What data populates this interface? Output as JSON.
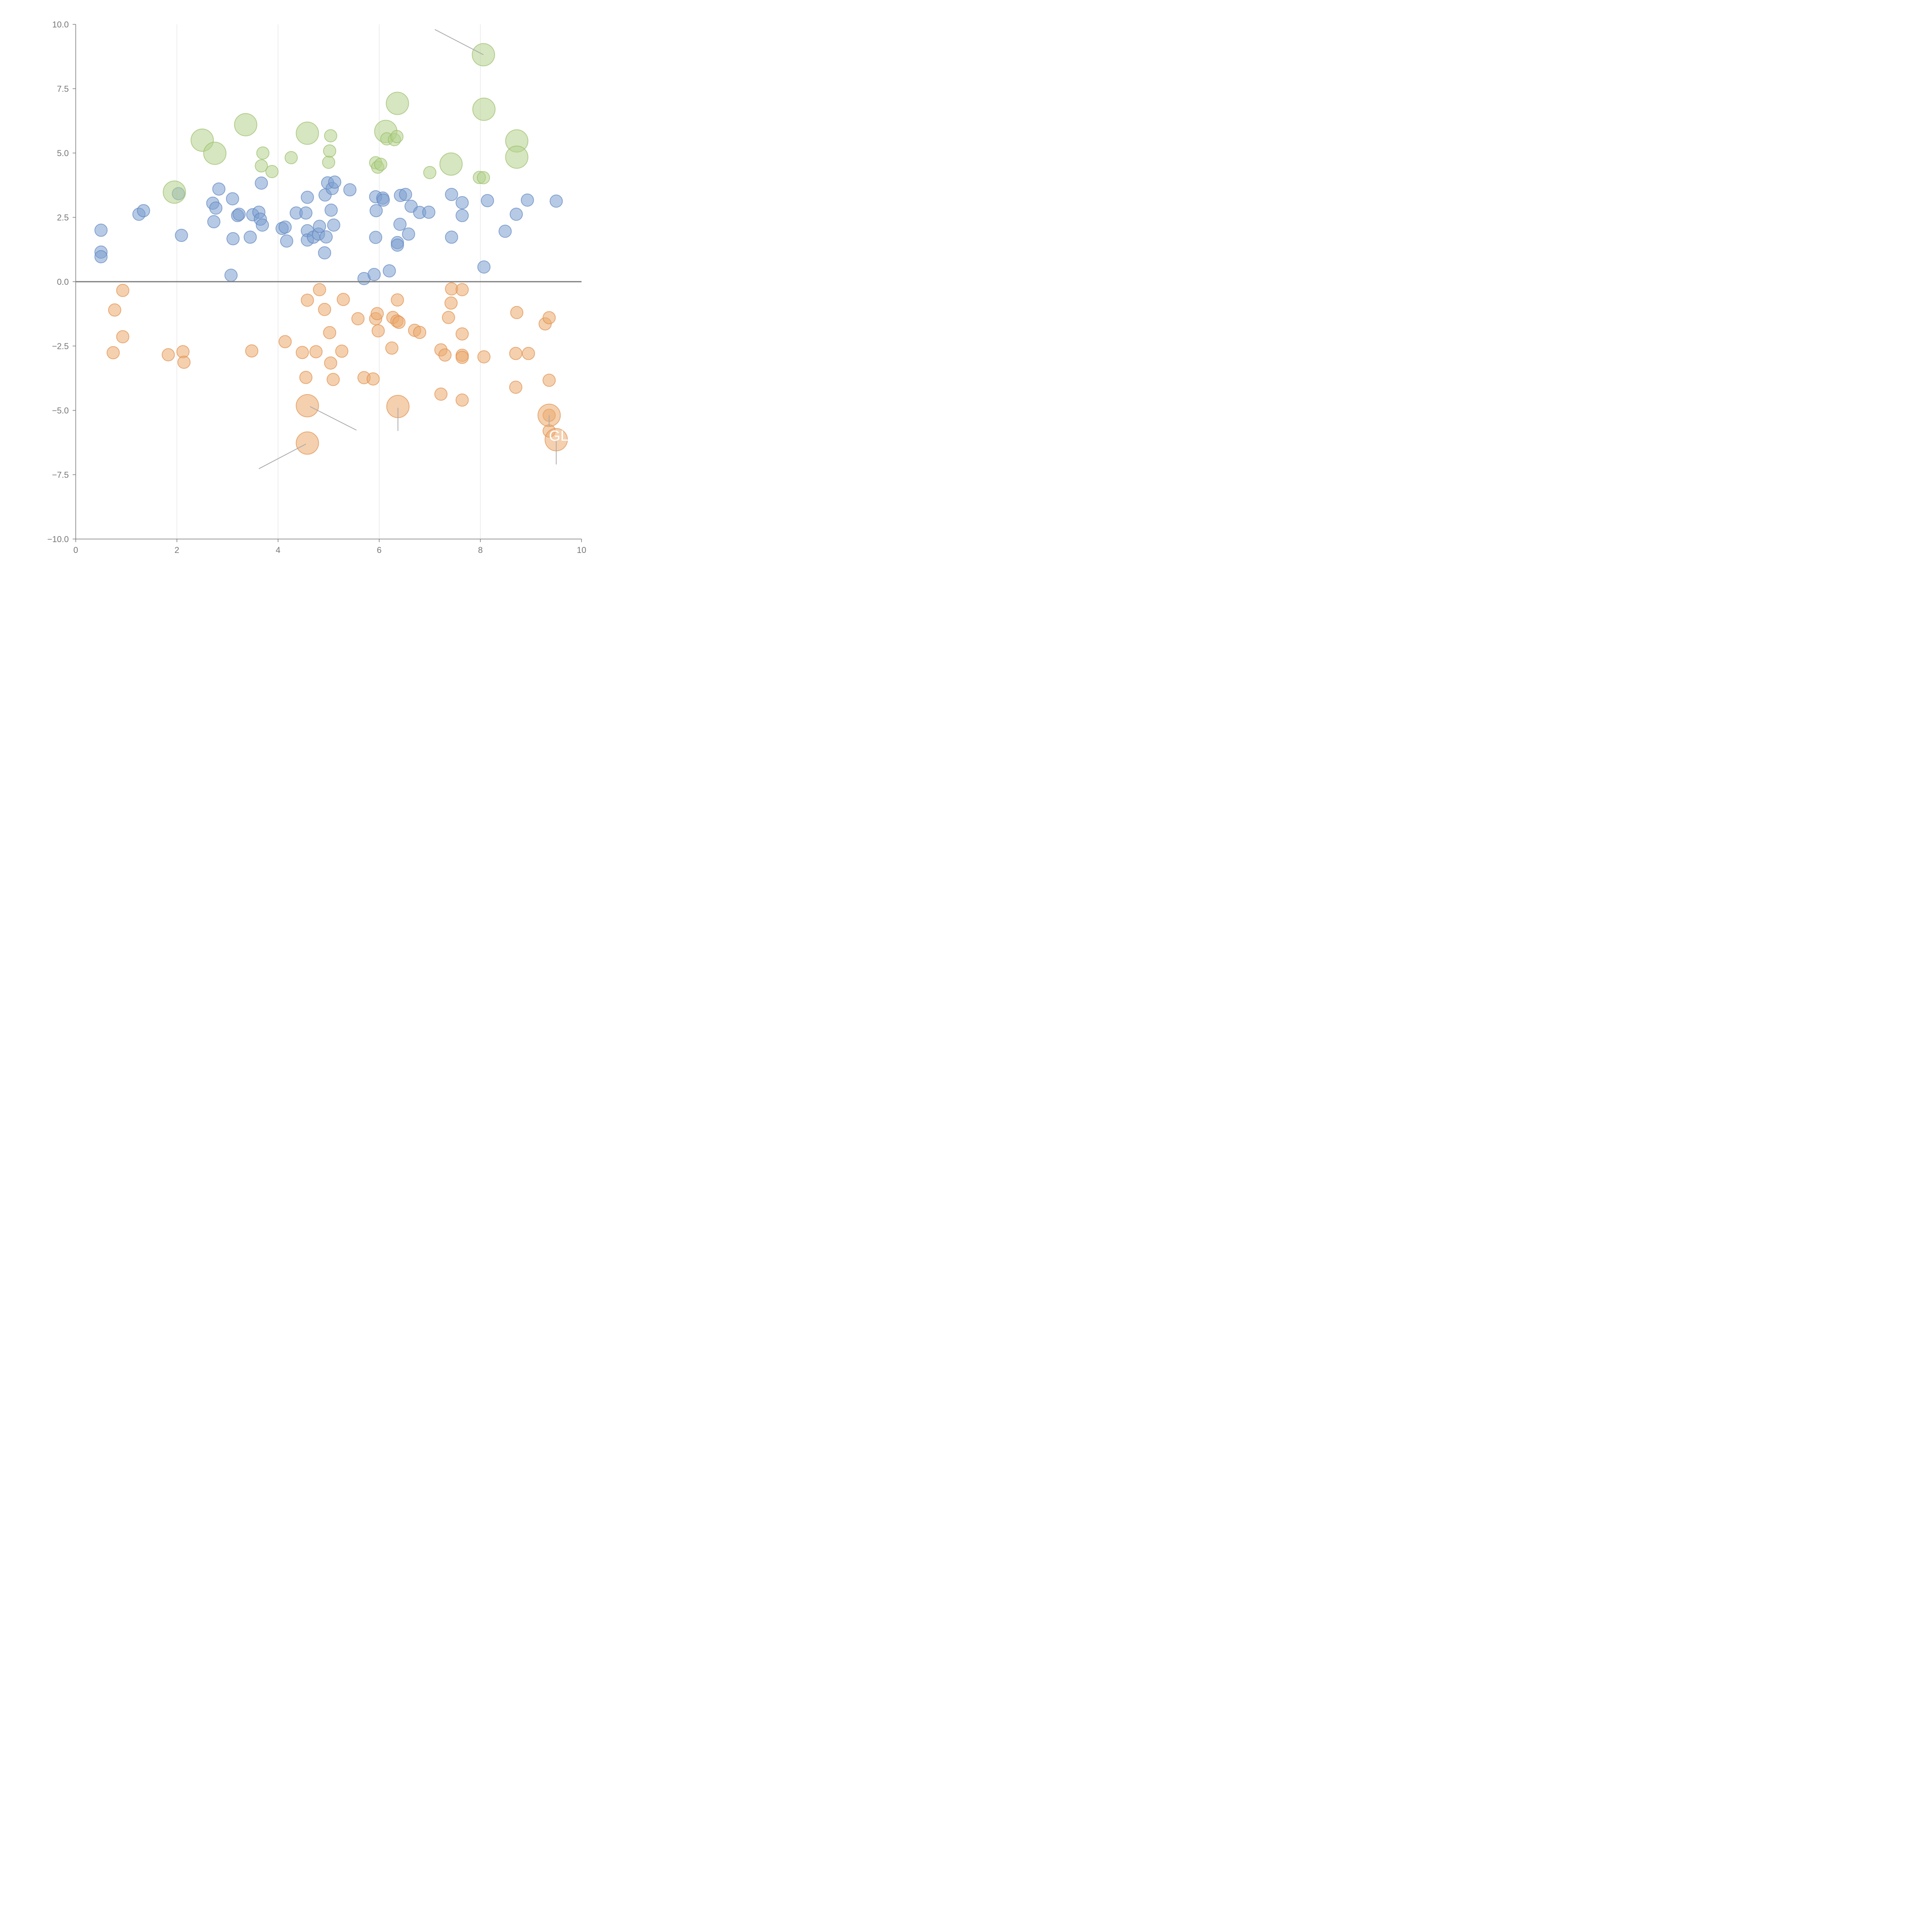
{
  "chart_data": {
    "type": "scatter",
    "subtype": "bubble",
    "title": "",
    "xlabel": "",
    "ylabel": "",
    "xlim": [
      0,
      10
    ],
    "ylim": [
      -10,
      10
    ],
    "x_ticks": [
      0,
      2,
      4,
      6,
      8,
      10
    ],
    "x_tick_labels": [
      "0",
      "2",
      "4",
      "6",
      "8",
      "10"
    ],
    "y_ticks": [
      10,
      7.5,
      5,
      2.5,
      0,
      -2.5,
      -5,
      -7.5,
      -10
    ],
    "y_tick_labels": [
      "10.0",
      "7.5",
      "5.0",
      "2.5",
      "0.0",
      "−2.5",
      "−5.0",
      "−7.5",
      "−10.0"
    ],
    "vertical_grid": true,
    "horizontal_grid": false,
    "zero_line": true,
    "legend": "none",
    "series": [
      {
        "name": "blue",
        "color": "#7b9fd0",
        "stroke": "#5f86bf",
        "points": [
          [
            0.5,
            2.0,
            1
          ],
          [
            0.5,
            1.15,
            1
          ],
          [
            0.5,
            0.97,
            1
          ],
          [
            1.25,
            2.62,
            1
          ],
          [
            1.34,
            2.76,
            1
          ],
          [
            2.03,
            3.42,
            1
          ],
          [
            2.09,
            1.8,
            1
          ],
          [
            2.71,
            3.05,
            1
          ],
          [
            2.73,
            2.33,
            1
          ],
          [
            2.77,
            2.86,
            1
          ],
          [
            2.83,
            3.6,
            1
          ],
          [
            3.07,
            0.25,
            1
          ],
          [
            3.1,
            3.22,
            1
          ],
          [
            3.11,
            1.67,
            1
          ],
          [
            3.2,
            2.57,
            1
          ],
          [
            3.23,
            2.62,
            1
          ],
          [
            3.45,
            1.73,
            1
          ],
          [
            3.5,
            2.6,
            1
          ],
          [
            3.62,
            2.7,
            1
          ],
          [
            3.65,
            2.43,
            1
          ],
          [
            3.67,
            3.83,
            1
          ],
          [
            3.69,
            2.2,
            1
          ],
          [
            4.08,
            2.07,
            1
          ],
          [
            4.14,
            2.12,
            1
          ],
          [
            4.17,
            1.58,
            1
          ],
          [
            4.36,
            2.67,
            1
          ],
          [
            4.55,
            2.67,
            1
          ],
          [
            4.58,
            3.28,
            1
          ],
          [
            4.58,
            1.98,
            1
          ],
          [
            4.58,
            1.62,
            1
          ],
          [
            4.7,
            1.73,
            1
          ],
          [
            4.8,
            1.85,
            1
          ],
          [
            4.82,
            2.15,
            1
          ],
          [
            4.92,
            1.12,
            1
          ],
          [
            4.93,
            3.37,
            1
          ],
          [
            4.95,
            1.74,
            1
          ],
          [
            4.98,
            3.84,
            1
          ],
          [
            5.05,
            2.78,
            1
          ],
          [
            5.07,
            3.62,
            1
          ],
          [
            5.1,
            2.2,
            1
          ],
          [
            5.12,
            3.87,
            1
          ],
          [
            5.42,
            3.57,
            1
          ],
          [
            5.7,
            0.12,
            1
          ],
          [
            5.9,
            0.28,
            1
          ],
          [
            5.93,
            3.3,
            1
          ],
          [
            5.93,
            1.72,
            1
          ],
          [
            5.94,
            2.76,
            1
          ],
          [
            6.07,
            3.25,
            1
          ],
          [
            6.08,
            3.17,
            1
          ],
          [
            6.2,
            0.42,
            1
          ],
          [
            6.36,
            1.52,
            1
          ],
          [
            6.36,
            1.42,
            1
          ],
          [
            6.41,
            2.23,
            1
          ],
          [
            6.42,
            3.35,
            1
          ],
          [
            6.52,
            3.39,
            1
          ],
          [
            6.58,
            1.85,
            1
          ],
          [
            6.63,
            2.93,
            1
          ],
          [
            6.8,
            2.69,
            1
          ],
          [
            6.98,
            2.7,
            1
          ],
          [
            7.43,
            3.39,
            1
          ],
          [
            7.43,
            1.73,
            1
          ],
          [
            7.64,
            3.07,
            1
          ],
          [
            7.64,
            2.57,
            1
          ],
          [
            8.07,
            0.57,
            1
          ],
          [
            8.14,
            3.15,
            1
          ],
          [
            8.49,
            1.96,
            1
          ],
          [
            8.71,
            2.62,
            1
          ],
          [
            8.93,
            3.17,
            1
          ],
          [
            9.5,
            3.13,
            1
          ]
        ]
      },
      {
        "name": "green",
        "color": "#b5d18d",
        "stroke": "#98bd6a",
        "points": [
          [
            1.95,
            3.48,
            3
          ],
          [
            2.5,
            5.5,
            3
          ],
          [
            2.75,
            4.99,
            3
          ],
          [
            3.36,
            6.1,
            3
          ],
          [
            3.67,
            4.5,
            1
          ],
          [
            3.7,
            5.0,
            1
          ],
          [
            3.88,
            4.28,
            1
          ],
          [
            4.26,
            4.82,
            1
          ],
          [
            4.58,
            5.77,
            3
          ],
          [
            5.0,
            4.64,
            1
          ],
          [
            5.02,
            5.08,
            1
          ],
          [
            5.04,
            5.67,
            1
          ],
          [
            5.93,
            4.62,
            1
          ],
          [
            5.97,
            4.45,
            1
          ],
          [
            6.03,
            4.56,
            1
          ],
          [
            6.13,
            5.84,
            3
          ],
          [
            6.15,
            5.55,
            1
          ],
          [
            6.3,
            5.52,
            1
          ],
          [
            6.35,
            5.64,
            1
          ],
          [
            6.36,
            6.93,
            3
          ],
          [
            7.0,
            4.24,
            1
          ],
          [
            7.42,
            4.57,
            3
          ],
          [
            7.98,
            4.05,
            1
          ],
          [
            8.06,
            4.04,
            1
          ],
          [
            8.06,
            8.82,
            3
          ],
          [
            8.07,
            6.7,
            3
          ],
          [
            8.72,
            5.47,
            3
          ],
          [
            8.72,
            4.84,
            3
          ]
        ]
      },
      {
        "name": "orange",
        "color": "#eba96e",
        "stroke": "#e08e4c",
        "points": [
          [
            0.74,
            -2.76,
            1
          ],
          [
            0.77,
            -1.1,
            1
          ],
          [
            0.93,
            -0.34,
            1
          ],
          [
            0.93,
            -2.14,
            1
          ],
          [
            1.83,
            -2.84,
            1
          ],
          [
            2.12,
            -2.72,
            1
          ],
          [
            2.14,
            -3.13,
            1
          ],
          [
            3.48,
            -2.69,
            1
          ],
          [
            4.14,
            -2.33,
            1
          ],
          [
            4.48,
            -2.75,
            1
          ],
          [
            4.55,
            -3.72,
            1
          ],
          [
            4.58,
            -0.72,
            1
          ],
          [
            4.58,
            -4.82,
            3
          ],
          [
            4.58,
            -6.27,
            3
          ],
          [
            4.75,
            -2.72,
            1
          ],
          [
            4.82,
            -0.31,
            1
          ],
          [
            4.92,
            -1.08,
            1
          ],
          [
            5.02,
            -1.98,
            1
          ],
          [
            5.04,
            -3.16,
            1
          ],
          [
            5.09,
            -3.8,
            1
          ],
          [
            5.26,
            -2.7,
            1
          ],
          [
            5.29,
            -0.69,
            1
          ],
          [
            5.58,
            -1.44,
            1
          ],
          [
            5.7,
            -3.73,
            1
          ],
          [
            5.88,
            -3.78,
            1
          ],
          [
            5.93,
            -1.44,
            1
          ],
          [
            5.96,
            -1.24,
            1
          ],
          [
            5.98,
            -1.91,
            1
          ],
          [
            6.25,
            -2.58,
            1
          ],
          [
            6.27,
            -1.39,
            1
          ],
          [
            6.35,
            -1.53,
            1
          ],
          [
            6.36,
            -0.71,
            1
          ],
          [
            6.37,
            -4.85,
            3
          ],
          [
            6.39,
            -1.58,
            1
          ],
          [
            6.7,
            -1.89,
            1
          ],
          [
            6.8,
            -1.97,
            1
          ],
          [
            7.22,
            -4.37,
            1
          ],
          [
            7.22,
            -2.65,
            1
          ],
          [
            7.3,
            -2.85,
            1
          ],
          [
            7.37,
            -1.39,
            1
          ],
          [
            7.42,
            -0.83,
            1
          ],
          [
            7.43,
            -0.28,
            1
          ],
          [
            7.64,
            -0.31,
            1
          ],
          [
            7.64,
            -2.03,
            1
          ],
          [
            7.64,
            -2.86,
            1
          ],
          [
            7.64,
            -2.94,
            1
          ],
          [
            7.64,
            -4.6,
            1
          ],
          [
            8.07,
            -2.92,
            1
          ],
          [
            8.7,
            -2.79,
            1
          ],
          [
            8.7,
            -4.1,
            1
          ],
          [
            8.72,
            -1.2,
            1
          ],
          [
            8.95,
            -2.79,
            1
          ],
          [
            9.28,
            -1.64,
            1
          ],
          [
            9.36,
            -1.4,
            1
          ],
          [
            9.36,
            -3.83,
            1
          ],
          [
            9.36,
            -5.19,
            1
          ],
          [
            9.36,
            -5.8,
            1
          ],
          [
            9.36,
            -5.19,
            3
          ],
          [
            9.5,
            -6.14,
            3
          ]
        ]
      }
    ],
    "annotations": [
      {
        "text": "GL",
        "x": 9.55,
        "y": -5.98
      }
    ]
  }
}
